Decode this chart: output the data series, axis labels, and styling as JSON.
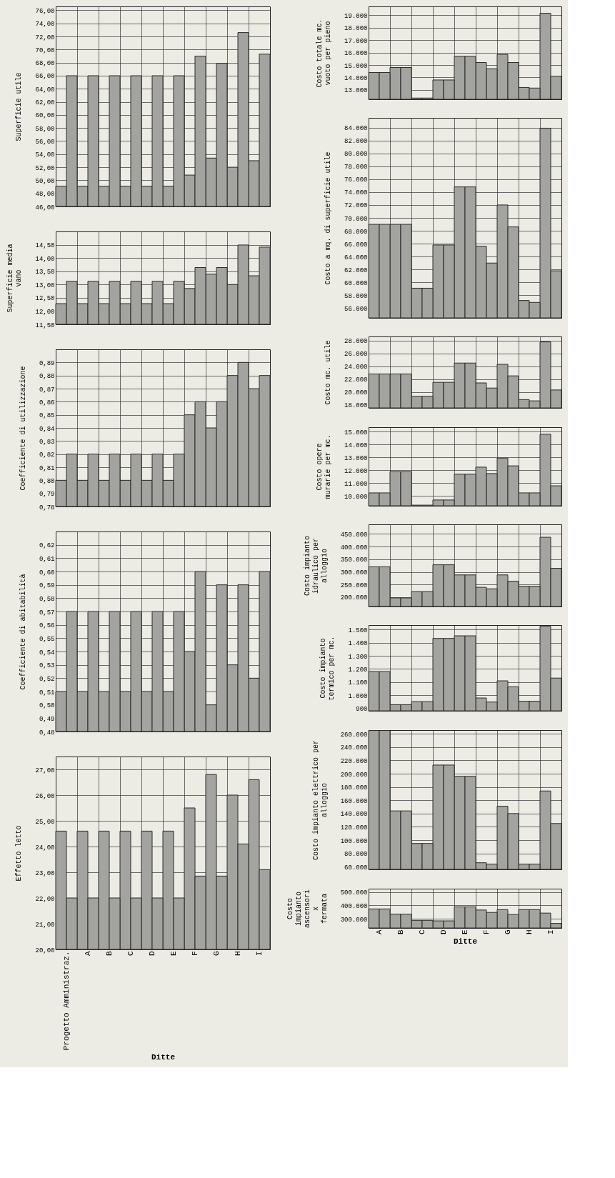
{
  "chart_data": [
    {
      "type": "bar",
      "ylabel": "Superficie utile",
      "categories": [
        null,
        null,
        null,
        null,
        null,
        null,
        null,
        null,
        null,
        null
      ],
      "grid": true,
      "series": [
        {
          "color": "#a3a3a0",
          "values": [
            49.1,
            49.1,
            49.1,
            49.1,
            49.1,
            49.1,
            50.8,
            53.4,
            52.0,
            53.0
          ]
        },
        {
          "color": "#a3a3a0",
          "values": [
            66.0,
            66.0,
            66.0,
            66.0,
            66.0,
            66.0,
            69.0,
            67.9,
            72.6,
            69.3
          ]
        }
      ],
      "ylim": [
        46,
        76.6
      ],
      "yticks": [
        {
          "value": 46,
          "label": "46,00"
        },
        {
          "value": 48,
          "label": "48,00"
        },
        {
          "value": 50,
          "label": "50,00"
        },
        {
          "value": 52,
          "label": "52,00"
        },
        {
          "value": 54,
          "label": "54,00"
        },
        {
          "value": 56,
          "label": "56,00"
        },
        {
          "value": 58,
          "label": "58,00"
        },
        {
          "value": 60,
          "label": "60,00"
        },
        {
          "value": 62,
          "label": "62,00"
        },
        {
          "value": 64,
          "label": "64,00"
        },
        {
          "value": 66,
          "label": "66,00"
        },
        {
          "value": 68,
          "label": "68,00"
        },
        {
          "value": 70,
          "label": "70,00"
        },
        {
          "value": 72,
          "label": "72,00"
        },
        {
          "value": 74,
          "label": "74,00"
        },
        {
          "value": 76,
          "label": "76,00"
        }
      ]
    },
    {
      "type": "bar",
      "ylabel": "Superficie media vano",
      "categories": [
        null,
        null,
        null,
        null,
        null,
        null,
        null,
        null,
        null,
        null
      ],
      "grid": true,
      "series": [
        {
          "color": "#a3a3a0",
          "values": [
            12.28,
            12.28,
            12.28,
            12.28,
            12.28,
            12.28,
            12.85,
            13.39,
            13.0,
            13.33
          ]
        },
        {
          "color": "#a3a3a0",
          "values": [
            13.12,
            13.12,
            13.12,
            13.12,
            13.12,
            13.12,
            13.64,
            13.64,
            14.49,
            14.41
          ]
        }
      ],
      "ylim": [
        11.5,
        15.0
      ],
      "yticks": [
        {
          "value": 11.5,
          "label": "11,50"
        },
        {
          "value": 12,
          "label": "12,00"
        },
        {
          "value": 12.5,
          "label": "12,50"
        },
        {
          "value": 13,
          "label": "13,00"
        },
        {
          "value": 13.5,
          "label": "13,50"
        },
        {
          "value": 14,
          "label": "14,00"
        },
        {
          "value": 14.5,
          "label": "14,50"
        }
      ]
    },
    {
      "type": "bar",
      "ylabel": "Coefficiente di utilizzazione",
      "categories": [
        null,
        null,
        null,
        null,
        null,
        null,
        null,
        null,
        null,
        null
      ],
      "grid": true,
      "series": [
        {
          "color": "#a3a3a0",
          "values": [
            0.8,
            0.8,
            0.8,
            0.8,
            0.8,
            0.8,
            0.85,
            0.84,
            0.88,
            0.87
          ]
        },
        {
          "color": "#a3a3a0",
          "values": [
            0.82,
            0.82,
            0.82,
            0.82,
            0.82,
            0.82,
            0.86,
            0.86,
            0.89,
            0.88
          ]
        }
      ],
      "ylim": [
        0.78,
        0.9
      ],
      "yticks": [
        {
          "value": 0.78,
          "label": "0,78"
        },
        {
          "value": 0.79,
          "label": "0,79"
        },
        {
          "value": 0.8,
          "label": "0,80"
        },
        {
          "value": 0.81,
          "label": "0,81"
        },
        {
          "value": 0.82,
          "label": "0,82"
        },
        {
          "value": 0.83,
          "label": "0,83"
        },
        {
          "value": 0.84,
          "label": "0,84"
        },
        {
          "value": 0.85,
          "label": "0,85"
        },
        {
          "value": 0.86,
          "label": "0,86"
        },
        {
          "value": 0.87,
          "label": "0,87"
        },
        {
          "value": 0.88,
          "label": "0,88"
        },
        {
          "value": 0.89,
          "label": "0,89"
        }
      ]
    },
    {
      "type": "bar",
      "ylabel": "Coefficiente di abitabilità",
      "categories": [
        null,
        null,
        null,
        null,
        null,
        null,
        null,
        null,
        null,
        null
      ],
      "grid": true,
      "series": [
        {
          "color": "#a3a3a0",
          "values": [
            0.51,
            0.51,
            0.51,
            0.51,
            0.51,
            0.51,
            0.54,
            0.5,
            0.53,
            0.52
          ]
        },
        {
          "color": "#a3a3a0",
          "values": [
            0.57,
            0.57,
            0.57,
            0.57,
            0.57,
            0.57,
            0.6,
            0.59,
            0.59,
            0.6
          ]
        }
      ],
      "ylim": [
        0.48,
        0.63
      ],
      "yticks": [
        {
          "value": 0.48,
          "label": "0,48"
        },
        {
          "value": 0.49,
          "label": "0,49"
        },
        {
          "value": 0.5,
          "label": "0,50"
        },
        {
          "value": 0.51,
          "label": "0,51"
        },
        {
          "value": 0.52,
          "label": "0,52"
        },
        {
          "value": 0.53,
          "label": "0,53"
        },
        {
          "value": 0.54,
          "label": "0,54"
        },
        {
          "value": 0.55,
          "label": "0,55"
        },
        {
          "value": 0.56,
          "label": "0,56"
        },
        {
          "value": 0.57,
          "label": "0,57"
        },
        {
          "value": 0.58,
          "label": "0,58"
        },
        {
          "value": 0.59,
          "label": "0,59"
        },
        {
          "value": 0.6,
          "label": "0,60"
        },
        {
          "value": 0.61,
          "label": "0,61"
        },
        {
          "value": 0.62,
          "label": "0,62"
        }
      ]
    },
    {
      "type": "bar",
      "ylabel": "Effetto letto",
      "xlabel": "Ditte",
      "categories": [
        "Progetto Amministraz.",
        "A",
        "B",
        "C",
        "D",
        "E",
        "F",
        "G",
        "H",
        "I"
      ],
      "grid": true,
      "series": [
        {
          "color": "#a3a3a0",
          "values": [
            24.6,
            24.6,
            24.6,
            24.6,
            24.6,
            24.6,
            25.5,
            26.8,
            26.0,
            26.6
          ]
        },
        {
          "color": "#a3a3a0",
          "values": [
            22.0,
            22.0,
            22.0,
            22.0,
            22.0,
            22.0,
            22.85,
            22.85,
            24.1,
            23.1
          ]
        }
      ],
      "ylim": [
        20,
        27.5
      ],
      "yticks": [
        {
          "value": 20,
          "label": "20,00"
        },
        {
          "value": 21,
          "label": "21,00"
        },
        {
          "value": 22,
          "label": "22,00"
        },
        {
          "value": 23,
          "label": "23,00"
        },
        {
          "value": 24,
          "label": "24,00"
        },
        {
          "value": 25,
          "label": "25,00"
        },
        {
          "value": 26,
          "label": "26,00"
        },
        {
          "value": 27,
          "label": "27,00"
        }
      ]
    },
    {
      "type": "bar",
      "ylabel": "Costo totale mc. vuoto per pieno",
      "categories": [
        null,
        null,
        null,
        null,
        null,
        null,
        null,
        null,
        null
      ],
      "grid": true,
      "series": [
        {
          "color": "#a3a3a0",
          "values": [
            14400,
            14800,
            12350,
            13800,
            15700,
            15200,
            15850,
            13200,
            19150
          ]
        },
        {
          "color": "#a3a3a0",
          "values": [
            14400,
            14800,
            12350,
            13800,
            15700,
            14700,
            15200,
            13150,
            14100
          ]
        }
      ],
      "ylim": [
        12250,
        19700
      ],
      "yticks": [
        {
          "value": 13000,
          "label": "13.000"
        },
        {
          "value": 14000,
          "label": "14.000"
        },
        {
          "value": 15000,
          "label": "15.000"
        },
        {
          "value": 16000,
          "label": "16.000"
        },
        {
          "value": 17000,
          "label": "17.000"
        },
        {
          "value": 18000,
          "label": "18.000"
        },
        {
          "value": 19000,
          "label": "19.000"
        }
      ]
    },
    {
      "type": "bar",
      "ylabel": "Costo a mq. di superficie utile",
      "categories": [
        null,
        null,
        null,
        null,
        null,
        null,
        null,
        null,
        null
      ],
      "grid": true,
      "series": [
        {
          "color": "#a3a3a0",
          "values": [
            69000,
            69000,
            59100,
            65800,
            74800,
            65600,
            72000,
            57200,
            83900
          ]
        },
        {
          "color": "#a3a3a0",
          "values": [
            69000,
            69000,
            59100,
            65800,
            74800,
            63000,
            68600,
            56900,
            61800
          ]
        }
      ],
      "ylim": [
        54500,
        85500
      ],
      "yticks": [
        {
          "value": 56000,
          "label": "56.000"
        },
        {
          "value": 58000,
          "label": "58.000"
        },
        {
          "value": 60000,
          "label": "60.000"
        },
        {
          "value": 62000,
          "label": "62.000"
        },
        {
          "value": 64000,
          "label": "64.000"
        },
        {
          "value": 66000,
          "label": "66.000"
        },
        {
          "value": 68000,
          "label": "68.000"
        },
        {
          "value": 70000,
          "label": "70.000"
        },
        {
          "value": 72000,
          "label": "72.000"
        },
        {
          "value": 74000,
          "label": "74.000"
        },
        {
          "value": 76000,
          "label": "76.000"
        },
        {
          "value": 78000,
          "label": "78.000"
        },
        {
          "value": 80000,
          "label": "80.000"
        },
        {
          "value": 82000,
          "label": "82.000"
        },
        {
          "value": 84000,
          "label": "84.000"
        }
      ]
    },
    {
      "type": "bar",
      "ylabel": "Costo mc. utile",
      "categories": [
        null,
        null,
        null,
        null,
        null,
        null,
        null,
        null,
        null
      ],
      "grid": true,
      "series": [
        {
          "color": "#a3a3a0",
          "values": [
            22800,
            22800,
            19300,
            21500,
            24500,
            21400,
            24300,
            18800,
            27800
          ]
        },
        {
          "color": "#a3a3a0",
          "values": [
            22800,
            22800,
            19300,
            21500,
            24500,
            20600,
            22500,
            18600,
            20300
          ]
        }
      ],
      "ylim": [
        17500,
        28650
      ],
      "yticks": [
        {
          "value": 18000,
          "label": "18.000"
        },
        {
          "value": 20000,
          "label": "20.000"
        },
        {
          "value": 22000,
          "label": "22.000"
        },
        {
          "value": 24000,
          "label": "24.000"
        },
        {
          "value": 26000,
          "label": "26.000"
        },
        {
          "value": 28000,
          "label": "28.000"
        }
      ]
    },
    {
      "type": "bar",
      "ylabel": "Costo opere murarie per mc.",
      "categories": [
        null,
        null,
        null,
        null,
        null,
        null,
        null,
        null,
        null
      ],
      "grid": true,
      "series": [
        {
          "color": "#a3a3a0",
          "values": [
            10250,
            11900,
            9300,
            9700,
            11700,
            12250,
            12950,
            10250,
            14800
          ]
        },
        {
          "color": "#a3a3a0",
          "values": [
            10250,
            11900,
            9300,
            9700,
            11700,
            11750,
            12350,
            10250,
            10800
          ]
        }
      ],
      "ylim": [
        9250,
        15350
      ],
      "yticks": [
        {
          "value": 10000,
          "label": "10.000"
        },
        {
          "value": 11000,
          "label": "11.000"
        },
        {
          "value": 12000,
          "label": "12.000"
        },
        {
          "value": 13000,
          "label": "13.000"
        },
        {
          "value": 14000,
          "label": "14.000"
        },
        {
          "value": 15000,
          "label": "15.000"
        }
      ]
    },
    {
      "type": "bar",
      "ylabel": "Costo impianto idraulico per alloggio",
      "categories": [
        null,
        null,
        null,
        null,
        null,
        null,
        null,
        null,
        null
      ],
      "grid": true,
      "series": [
        {
          "color": "#a3a3a0",
          "values": [
            320000,
            197000,
            222000,
            328000,
            288000,
            239000,
            288000,
            243000,
            437000
          ]
        },
        {
          "color": "#a3a3a0",
          "values": [
            320000,
            197000,
            222000,
            328000,
            288000,
            233000,
            263000,
            243000,
            314000
          ]
        }
      ],
      "ylim": [
        163000,
        488000
      ],
      "yticks": [
        {
          "value": 200000,
          "label": "200.000"
        },
        {
          "value": 250000,
          "label": "250.000"
        },
        {
          "value": 300000,
          "label": "300.000"
        },
        {
          "value": 350000,
          "label": "350.000"
        },
        {
          "value": 400000,
          "label": "400.000"
        },
        {
          "value": 450000,
          "label": "450.000"
        }
      ]
    },
    {
      "type": "bar",
      "ylabel": "Costo impianto termico per mc.",
      "categories": [
        null,
        null,
        null,
        null,
        null,
        null,
        null,
        null,
        null
      ],
      "grid": true,
      "series": [
        {
          "color": "#a3a3a0",
          "values": [
            1180,
            927,
            950,
            1433,
            1453,
            978,
            1109,
            953,
            1525
          ]
        },
        {
          "color": "#a3a3a0",
          "values": [
            1180,
            927,
            950,
            1433,
            1453,
            947,
            1063,
            953,
            1130
          ]
        }
      ],
      "ylim": [
        880,
        1535
      ],
      "yticks": [
        {
          "value": 900,
          "label": "900"
        },
        {
          "value": 1000,
          "label": "1.000"
        },
        {
          "value": 1100,
          "label": "1.100"
        },
        {
          "value": 1200,
          "label": "1.200"
        },
        {
          "value": 1300,
          "label": "1.300"
        },
        {
          "value": 1400,
          "label": "1.400"
        },
        {
          "value": 1500,
          "label": "1.500"
        }
      ]
    },
    {
      "type": "bar",
      "ylabel": "Costo impianto elettrico per alloggio",
      "categories": [
        null,
        null,
        null,
        null,
        null,
        null,
        null,
        null,
        null
      ],
      "grid": true,
      "series": [
        {
          "color": "#a3a3a0",
          "values": [
            265000,
            144000,
            95000,
            213000,
            196000,
            66000,
            151000,
            64000,
            174000
          ]
        },
        {
          "color": "#a3a3a0",
          "values": [
            265000,
            144000,
            95000,
            213000,
            196000,
            64000,
            140000,
            64000,
            125000
          ]
        }
      ],
      "ylim": [
        56000,
        265600
      ],
      "yticks": [
        {
          "value": 60000,
          "label": "60.000"
        },
        {
          "value": 80000,
          "label": "80.000"
        },
        {
          "value": 100000,
          "label": "100.000"
        },
        {
          "value": 120000,
          "label": "120.000"
        },
        {
          "value": 140000,
          "label": "140.000"
        },
        {
          "value": 160000,
          "label": "160.000"
        },
        {
          "value": 180000,
          "label": "180.000"
        },
        {
          "value": 200000,
          "label": "200.000"
        },
        {
          "value": 220000,
          "label": "220.000"
        },
        {
          "value": 240000,
          "label": "240.000"
        },
        {
          "value": 260000,
          "label": "260.000"
        }
      ]
    },
    {
      "type": "bar",
      "ylabel": "Costo impianto ascensori x fermata",
      "xlabel": "Ditte",
      "categories": [
        "A",
        "B",
        "C",
        "D",
        "E",
        "F",
        "G",
        "H",
        "I"
      ],
      "grid": true,
      "series": [
        {
          "color": "#a3a3a0",
          "values": [
            374000,
            335000,
            289000,
            285000,
            389000,
            366000,
            369000,
            369000,
            343000
          ]
        },
        {
          "color": "#a3a3a0",
          "values": [
            374000,
            335000,
            289000,
            285000,
            389000,
            348000,
            332000,
            369000,
            266000
          ]
        }
      ],
      "ylim": [
        232000,
        525000
      ],
      "yticks": [
        {
          "value": 300000,
          "label": "300.000"
        },
        {
          "value": 400000,
          "label": "400.000"
        },
        {
          "value": 500000,
          "label": "500.000"
        }
      ]
    }
  ]
}
